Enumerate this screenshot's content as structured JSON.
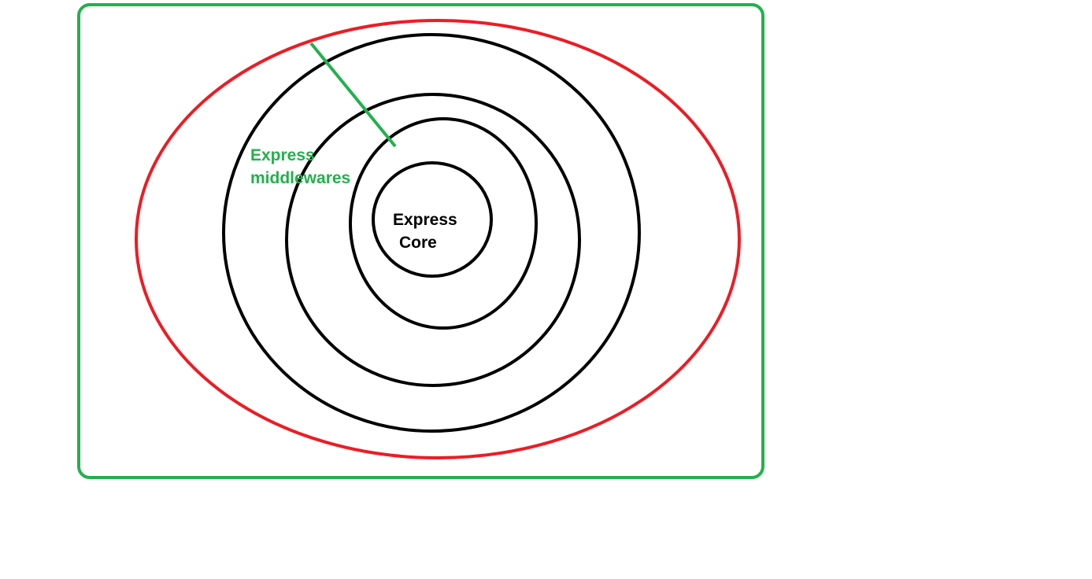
{
  "colors": {
    "background": "#ffffff",
    "outer_border": "#22b14c",
    "outer_ellipse": "#ed1c24",
    "rings": "#000000",
    "pointer_line": "#22b14c",
    "middleware_label": "#22b14c",
    "core_label": "#000000"
  },
  "labels": {
    "middleware_line1": "Express",
    "middleware_line2": "middlewares",
    "core_line1": "Express",
    "core_line2": "Core"
  }
}
